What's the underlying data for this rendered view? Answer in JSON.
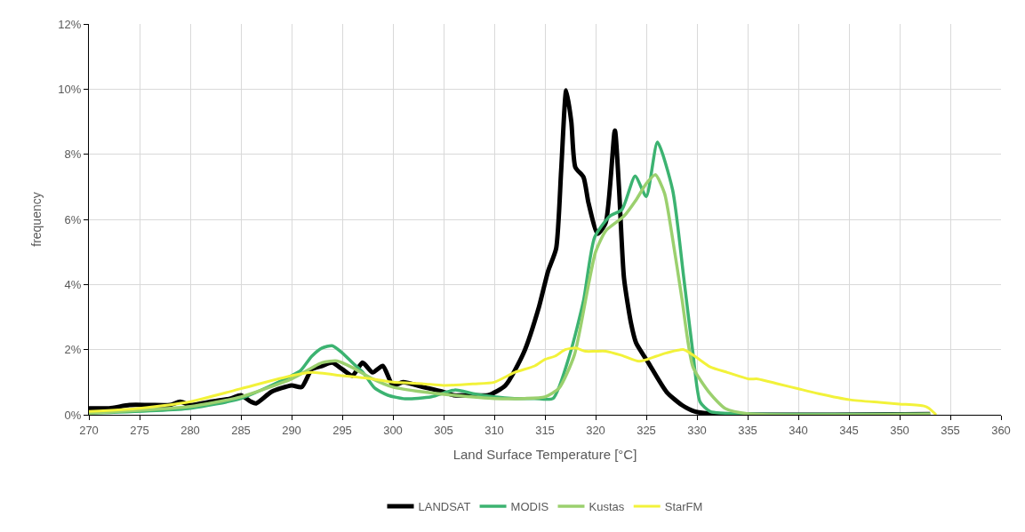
{
  "chart_data": {
    "type": "line",
    "xlabel": "Land Surface Temperature [°C]",
    "ylabel": "frequency",
    "xlim": [
      270,
      360
    ],
    "xticks": [
      270,
      275,
      280,
      285,
      290,
      295,
      300,
      305,
      310,
      315,
      320,
      325,
      330,
      335,
      340,
      345,
      350,
      355,
      360
    ],
    "ylim": [
      0,
      12
    ],
    "yticks": [
      {
        "value": 0,
        "label": "0%"
      },
      {
        "value": 2,
        "label": "2%"
      },
      {
        "value": 4,
        "label": "4%"
      },
      {
        "value": 6,
        "label": "6%"
      },
      {
        "value": 8,
        "label": "8%"
      },
      {
        "value": 10,
        "label": "10%"
      },
      {
        "value": 12,
        "label": "12%"
      }
    ],
    "grid": true,
    "legend": "bottom",
    "marker": "none",
    "line_style": "solid",
    "series": [
      {
        "name": "LANDSAT",
        "color": "#000000",
        "x": [
          270,
          272,
          274,
          276,
          278,
          279,
          280,
          282,
          284,
          285,
          286,
          286.5,
          288,
          290,
          291,
          292,
          293,
          294,
          295,
          296,
          297,
          298,
          299,
          300,
          301,
          303,
          305,
          306,
          308,
          309.4,
          311.1,
          312.9,
          314.4,
          315.3,
          316.1,
          316.6,
          317.1,
          317.6,
          318,
          318.8,
          319.3,
          320.2,
          321,
          321.9,
          322.3,
          322.8,
          323.5,
          324,
          325.2,
          327,
          328.5,
          329.8,
          332,
          353
        ],
        "values": [
          0.2,
          0.2,
          0.3,
          0.3,
          0.3,
          0.4,
          0.3,
          0.4,
          0.5,
          0.6,
          0.4,
          0.35,
          0.7,
          0.9,
          0.85,
          1.4,
          1.5,
          1.6,
          1.4,
          1.2,
          1.6,
          1.3,
          1.5,
          0.9,
          1.0,
          0.85,
          0.7,
          0.6,
          0.6,
          0.6,
          0.9,
          1.9,
          3.3,
          4.4,
          5.1,
          7.5,
          9.96,
          9.0,
          7.6,
          7.3,
          6.5,
          5.56,
          5.9,
          8.73,
          7.0,
          4.2,
          2.8,
          2.2,
          1.6,
          0.7,
          0.3,
          0.1,
          0.02,
          0.02
        ]
      },
      {
        "name": "MODIS",
        "color": "#3cb371",
        "x": [
          270,
          280,
          285,
          290,
          290.9,
          292,
          293,
          294,
          295,
          296,
          297.1,
          298.2,
          299.5,
          301.2,
          303.8,
          306.1,
          307.9,
          310,
          312,
          314,
          315.8,
          317.5,
          318.8,
          319.9,
          321.4,
          322.6,
          323.9,
          325,
          326.1,
          327.6,
          328.7,
          329.6,
          330.3,
          331.3,
          335,
          353
        ],
        "values": [
          0.05,
          0.2,
          0.5,
          1.2,
          1.36,
          1.8,
          2.05,
          2.12,
          1.9,
          1.6,
          1.28,
          0.82,
          0.6,
          0.49,
          0.55,
          0.76,
          0.65,
          0.55,
          0.5,
          0.5,
          0.5,
          1.9,
          3.5,
          5.45,
          6.1,
          6.3,
          7.33,
          6.7,
          8.37,
          6.9,
          4.2,
          1.9,
          0.4,
          0.1,
          0.03,
          0.02
        ]
      },
      {
        "name": "Kustas",
        "color": "#9bd06e",
        "x": [
          270,
          280,
          285,
          290,
          293,
          294.5,
          296,
          298,
          300,
          303,
          306,
          310,
          313,
          315,
          316.4,
          317.9,
          319.3,
          320,
          321,
          322.8,
          324,
          325,
          325.9,
          326.8,
          327.5,
          328.5,
          329.6,
          331.3,
          332.8,
          335.1,
          353
        ],
        "values": [
          0.05,
          0.25,
          0.55,
          1.1,
          1.6,
          1.65,
          1.45,
          1.1,
          0.85,
          0.7,
          0.6,
          0.5,
          0.5,
          0.55,
          0.82,
          1.83,
          4.0,
          5.0,
          5.65,
          6.1,
          6.6,
          7.1,
          7.37,
          6.8,
          5.6,
          3.6,
          1.47,
          0.65,
          0.19,
          0.03,
          0.02
        ]
      },
      {
        "name": "StarFM",
        "color": "#f2f23a",
        "x": [
          270,
          275,
          280,
          285,
          290,
          292,
          295,
          298,
          300,
          303,
          305,
          308,
          310,
          312,
          314,
          315,
          316,
          317,
          318,
          319,
          320,
          321,
          322.5,
          324.3,
          326,
          327,
          328.7,
          330,
          331.3,
          333,
          335.1,
          336,
          338,
          340.1,
          342,
          345.1,
          348,
          350,
          352.4,
          352.9,
          353.6
        ],
        "values": [
          0.1,
          0.2,
          0.4,
          0.8,
          1.2,
          1.3,
          1.2,
          1.1,
          1.0,
          0.95,
          0.9,
          0.95,
          1.0,
          1.3,
          1.5,
          1.7,
          1.8,
          2.0,
          2.05,
          1.95,
          1.95,
          1.95,
          1.83,
          1.64,
          1.8,
          1.9,
          2.0,
          1.75,
          1.47,
          1.3,
          1.1,
          1.1,
          0.95,
          0.79,
          0.65,
          0.46,
          0.38,
          0.33,
          0.27,
          0.2,
          0
        ]
      }
    ]
  }
}
